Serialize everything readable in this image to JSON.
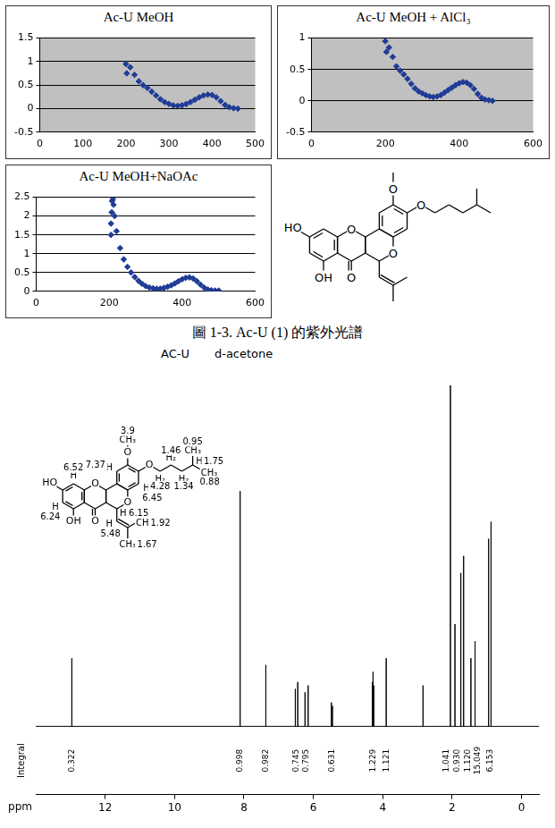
{
  "chart_data": [
    {
      "type": "scatter",
      "title": "Ac-U MeOH",
      "color": "#1f3c96",
      "marker": "diamond",
      "grid": "y",
      "x": [
        200,
        202,
        210,
        220,
        230,
        240,
        250,
        260,
        270,
        280,
        290,
        300,
        310,
        320,
        330,
        340,
        350,
        360,
        370,
        380,
        390,
        400,
        410,
        420,
        430,
        440,
        450,
        460
      ],
      "values": [
        0.95,
        0.75,
        0.88,
        0.72,
        0.58,
        0.5,
        0.44,
        0.36,
        0.28,
        0.2,
        0.14,
        0.1,
        0.07,
        0.06,
        0.07,
        0.1,
        0.14,
        0.19,
        0.24,
        0.28,
        0.3,
        0.29,
        0.24,
        0.16,
        0.08,
        0.03,
        0.01,
        0.0
      ],
      "xlim": [
        0,
        500
      ],
      "xticks": [
        0,
        100,
        200,
        300,
        400,
        500
      ],
      "ylim": [
        -0.5,
        1.5
      ],
      "yticks": [
        -0.5,
        0,
        0.5,
        1,
        1.5
      ]
    },
    {
      "type": "scatter",
      "title": "Ac-U MeOH + AlCl₃",
      "color": "#1f3c96",
      "marker": "diamond",
      "grid": "y",
      "x": [
        200,
        203,
        210,
        220,
        230,
        240,
        250,
        260,
        270,
        280,
        290,
        300,
        310,
        320,
        330,
        340,
        350,
        360,
        370,
        380,
        390,
        400,
        410,
        420,
        430,
        440,
        450,
        460,
        470,
        480,
        490
      ],
      "values": [
        0.95,
        0.78,
        0.85,
        0.7,
        0.55,
        0.48,
        0.42,
        0.35,
        0.27,
        0.2,
        0.15,
        0.12,
        0.09,
        0.07,
        0.06,
        0.07,
        0.09,
        0.13,
        0.17,
        0.21,
        0.25,
        0.28,
        0.3,
        0.29,
        0.25,
        0.19,
        0.11,
        0.05,
        0.02,
        0.01,
        0.0
      ],
      "xlim": [
        0,
        600
      ],
      "xticks": [
        0,
        200,
        400,
        600
      ],
      "ylim": [
        -0.5,
        1
      ],
      "yticks": [
        -0.5,
        0,
        0.5,
        1
      ]
    },
    {
      "type": "scatter",
      "title": "Ac-U MeOH+NaOAc",
      "color": "#1f3c96",
      "marker": "diamond",
      "grid": "y",
      "x": [
        205,
        205,
        207,
        208,
        210,
        212,
        215,
        220,
        230,
        240,
        250,
        260,
        270,
        280,
        290,
        300,
        310,
        320,
        330,
        340,
        350,
        360,
        370,
        380,
        390,
        400,
        410,
        420,
        430,
        440,
        450,
        460,
        470,
        480,
        490,
        500
      ],
      "values": [
        1.5,
        1.8,
        2.1,
        2.4,
        2.45,
        2.3,
        2.0,
        1.6,
        1.15,
        0.85,
        0.65,
        0.5,
        0.38,
        0.28,
        0.2,
        0.14,
        0.1,
        0.08,
        0.07,
        0.07,
        0.09,
        0.12,
        0.16,
        0.21,
        0.27,
        0.32,
        0.36,
        0.37,
        0.34,
        0.27,
        0.18,
        0.1,
        0.05,
        0.03,
        0.02,
        0.02
      ],
      "xlim": [
        0,
        600
      ],
      "xticks": [
        0,
        200,
        400,
        600
      ],
      "ylim": [
        0,
        2.5
      ],
      "yticks": [
        0,
        0.5,
        1,
        1.5,
        2,
        2.5
      ]
    },
    {
      "type": "line",
      "title": "AC-U",
      "subtitle": "d-acetone",
      "x_label": "ppm",
      "color": "#000000",
      "x": [
        12.96,
        8.11,
        7.37,
        6.52,
        6.45,
        6.24,
        6.15,
        5.48,
        5.45,
        4.3,
        4.28,
        4.26,
        3.9,
        2.84,
        2.05,
        1.92,
        1.75,
        1.67,
        1.46,
        1.34,
        0.95,
        0.88
      ],
      "values": [
        0.2,
        0.69,
        0.18,
        0.11,
        0.13,
        0.1,
        0.12,
        0.07,
        0.06,
        0.13,
        0.16,
        0.12,
        0.2,
        0.12,
        1.0,
        0.3,
        0.45,
        0.5,
        0.2,
        0.25,
        0.55,
        0.6
      ],
      "xlim": [
        14,
        -0.5
      ],
      "xticks": [
        0,
        2,
        4,
        6,
        8,
        10,
        12
      ],
      "ylim": [
        -0.2,
        1.05
      ],
      "tick_labels": "x",
      "integral_label": "Integral",
      "integrals": [
        {
          "ppm": 12.96,
          "label": "0.322"
        },
        {
          "ppm": 8.11,
          "label": "0.998"
        },
        {
          "ppm": 7.37,
          "label": "0.982"
        },
        {
          "ppm": 6.5,
          "label": "0.745"
        },
        {
          "ppm": 6.2,
          "label": "0.795"
        },
        {
          "ppm": 5.47,
          "label": "0.631"
        },
        {
          "ppm": 4.28,
          "label": "1.229"
        },
        {
          "ppm": 3.9,
          "label": "1.121"
        },
        {
          "ppm": 2.15,
          "label": "1.041"
        },
        {
          "ppm": 1.85,
          "label": "0.930"
        },
        {
          "ppm": 1.55,
          "label": "1.120"
        },
        {
          "ppm": 1.25,
          "label": "15.049"
        },
        {
          "ppm": 0.9,
          "label": "6.153"
        }
      ],
      "structure": {
        "labels": [
          "HO",
          "OH",
          "O",
          "O",
          "O",
          "O",
          "O"
        ],
        "protons": [
          {
            "group": "H",
            "shift": 6.52
          },
          {
            "group": "H",
            "shift": 6.24
          },
          {
            "group": "H",
            "shift": 7.37
          },
          {
            "group": "H",
            "shift": 6.45
          },
          {
            "group": "H",
            "shift": 6.15
          },
          {
            "group": "H",
            "shift": 5.48
          },
          {
            "group": "CH₃",
            "shift": 1.92
          },
          {
            "group": "CH₃",
            "shift": 1.67
          },
          {
            "group": "CH₃",
            "shift": 3.9
          },
          {
            "group": "H₂",
            "shift": 4.28
          },
          {
            "group": "H₂",
            "shift": 1.46
          },
          {
            "group": "H₂",
            "shift": 1.34
          },
          {
            "group": "H",
            "shift": 1.75
          },
          {
            "group": "CH₃",
            "shift": 0.88
          },
          {
            "group": "CH₃",
            "shift": 0.95
          }
        ]
      }
    }
  ],
  "structure": {
    "labels": [
      "HO",
      "OH",
      "O",
      "O",
      "O",
      "O",
      "O"
    ]
  },
  "caption": "圖 1-3. Ac-U (1) 的紫外光譜"
}
